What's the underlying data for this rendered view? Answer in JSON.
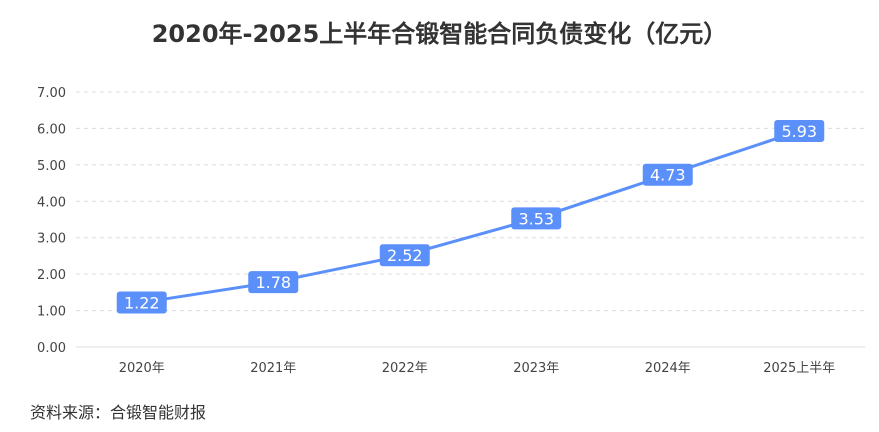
{
  "chart_data": {
    "type": "line",
    "title": "2020年-2025上半年合锻智能合同负债变化（亿元）",
    "categories": [
      "2020年",
      "2021年",
      "2022年",
      "2023年",
      "2024年",
      "2025上半年"
    ],
    "series": [
      {
        "values": [
          1.22,
          1.78,
          2.52,
          3.53,
          4.73,
          5.93
        ]
      }
    ],
    "value_labels": [
      "1.22",
      "1.78",
      "2.52",
      "3.53",
      "4.73",
      "5.93"
    ],
    "ylim": [
      0,
      7
    ],
    "yticks": [
      "0.00",
      "1.00",
      "2.00",
      "3.00",
      "4.00",
      "5.00",
      "6.00",
      "7.00"
    ],
    "grid": true,
    "line_color": "#5B8FF9",
    "label_bg_color": "#5B8FF9",
    "label_text_color": "#ffffff"
  },
  "source": "资料来源：合锻智能财报"
}
